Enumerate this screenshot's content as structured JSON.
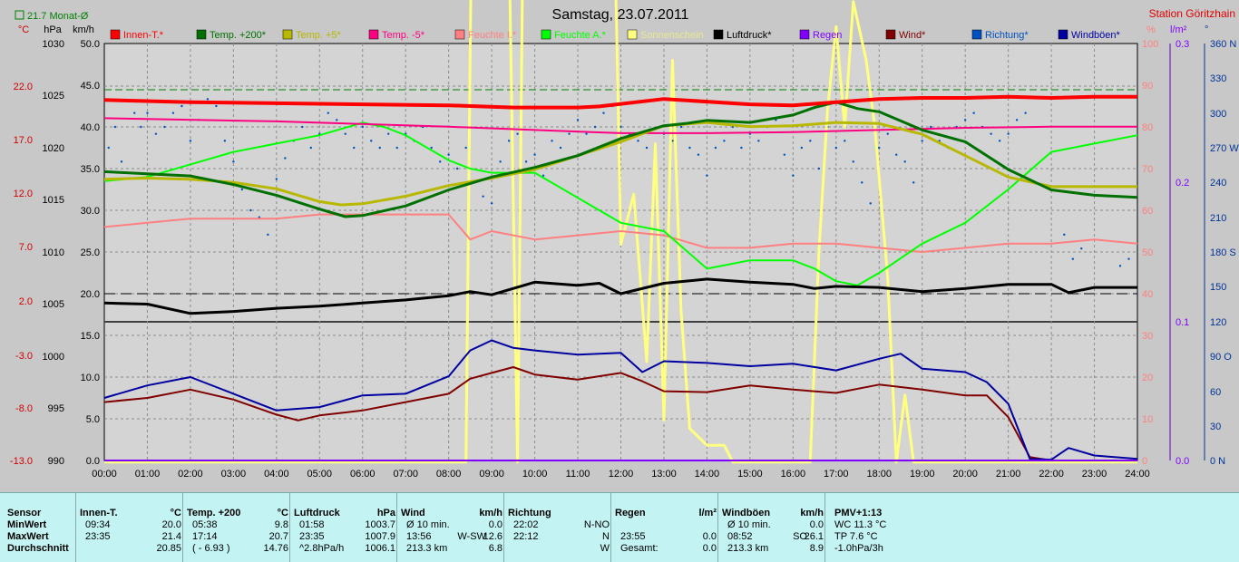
{
  "chart_data": {
    "type": "line",
    "title": "Samstag, 23.07.2011",
    "station": "Station Göritzhain",
    "monthly_avg_label": "21.7 Monat-Ø",
    "unit_labels": {
      "temp": "°C",
      "pressure": "hPa",
      "wind_speed": "km/h",
      "humidity": "%",
      "rain": "l/m²",
      "direction": "°"
    },
    "x_ticks": [
      "00:00",
      "01:00",
      "02:00",
      "03:00",
      "04:00",
      "05:00",
      "06:00",
      "07:00",
      "08:00",
      "09:00",
      "10:00",
      "11:00",
      "12:00",
      "13:00",
      "14:00",
      "15:00",
      "16:00",
      "17:00",
      "18:00",
      "19:00",
      "20:00",
      "21:00",
      "22:00",
      "23:00",
      "24:00"
    ],
    "axes": {
      "temp_ticks": [
        "22.0",
        "17.0",
        "12.0",
        "7.0",
        "2.0",
        "-3.0",
        "-8.0",
        "-13.0"
      ],
      "pressure_ticks": [
        "1030",
        "1025",
        "1020",
        "1015",
        "1010",
        "1005",
        "1000",
        "995",
        "990"
      ],
      "speed_ticks_upper": [
        "50.0",
        "45.0",
        "40.0",
        "35.0",
        "30.0",
        "25.0",
        "20.0"
      ],
      "speed_ticks_lower": [
        "15.0",
        "10.0",
        "5.0",
        "0.0"
      ],
      "humidity_ticks_upper": [
        "100",
        "90",
        "80",
        "70",
        "60",
        "50",
        "40"
      ],
      "humidity_ticks_lower": [
        "30",
        "20",
        "10",
        "0"
      ],
      "rain_ticks": [
        "0.3",
        "0.2",
        "0.1",
        "0.0"
      ],
      "direction_ticks": [
        "360 N",
        "330",
        "300",
        "270 W",
        "240",
        "210",
        "180 S",
        "150",
        "120",
        "90 O",
        "60",
        "30",
        "0 N"
      ]
    },
    "legend": [
      {
        "label": "Innen-T.*",
        "color": "#ff0000"
      },
      {
        "label": "Temp. +200*",
        "color": "#007000"
      },
      {
        "label": "Temp. +5*",
        "color": "#b8b800"
      },
      {
        "label": "Temp. -5*",
        "color": "#ff0080"
      },
      {
        "label": "Feuchte I.*",
        "color": "#ff8080"
      },
      {
        "label": "Feuchte A.*",
        "color": "#00ff00"
      },
      {
        "label": "Sonnenschein",
        "color": "#ffff80"
      },
      {
        "label": "Luftdruck*",
        "color": "#000000"
      },
      {
        "label": "Regen",
        "color": "#8000ff"
      },
      {
        "label": "Wind*",
        "color": "#800000"
      },
      {
        "label": "Richtung*",
        "color": "#0050c0"
      },
      {
        "label": "Windböen*",
        "color": "#0000a0"
      }
    ],
    "series": [
      {
        "name": "Innen-T.*",
        "color": "#ff0000",
        "width": 4,
        "axis": "temp",
        "x": [
          0,
          2,
          4,
          6,
          8,
          9.5,
          11,
          11.5,
          13,
          15,
          16,
          17,
          18,
          19,
          20,
          21,
          22,
          23,
          24
        ],
        "y": [
          20.7,
          20.5,
          20.4,
          20.3,
          20.2,
          20.0,
          20.0,
          20.1,
          20.8,
          20.3,
          20.2,
          20.5,
          20.8,
          20.9,
          20.9,
          21.0,
          20.9,
          21.0,
          21.0
        ]
      },
      {
        "name": "Temp. +200*",
        "color": "#007000",
        "width": 3,
        "axis": "temp",
        "x": [
          0,
          1,
          2,
          3,
          4,
          5,
          5.6,
          6,
          7,
          8,
          9,
          10,
          11,
          12,
          13,
          13.5,
          14,
          15,
          16,
          16.5,
          17,
          17.5,
          18,
          19,
          20,
          21,
          22,
          23,
          24
        ],
        "y": [
          14.0,
          13.8,
          13.6,
          12.8,
          11.8,
          10.5,
          9.8,
          9.9,
          10.8,
          12.3,
          13.5,
          14.4,
          15.5,
          17.1,
          18.3,
          18.5,
          18.8,
          18.6,
          19.3,
          20.0,
          20.5,
          19.9,
          19.6,
          17.9,
          16.8,
          14.2,
          12.3,
          11.8,
          11.6
        ]
      },
      {
        "name": "Temp. +5*",
        "color": "#b8b800",
        "width": 3,
        "axis": "temp",
        "x": [
          0,
          1,
          2,
          3,
          4,
          5,
          5.5,
          6,
          7,
          8,
          9,
          10,
          11,
          12,
          13,
          14,
          15,
          16,
          17,
          18,
          19,
          20,
          21,
          22,
          23,
          24
        ],
        "y": [
          13.3,
          13.4,
          13.3,
          13.0,
          12.4,
          11.2,
          10.9,
          11.0,
          11.7,
          12.7,
          13.4,
          14.2,
          15.5,
          16.8,
          18.3,
          18.6,
          18.2,
          18.3,
          18.6,
          18.5,
          17.5,
          15.5,
          13.5,
          12.6,
          12.6,
          12.6
        ]
      },
      {
        "name": "Temp. -5*",
        "color": "#ff0080",
        "width": 2,
        "axis": "temp",
        "x": [
          0,
          4,
          8,
          10,
          12,
          14,
          16,
          18,
          20,
          22,
          24
        ],
        "y": [
          19.0,
          18.7,
          18.2,
          17.9,
          17.6,
          17.6,
          17.7,
          17.9,
          18.1,
          18.2,
          18.2
        ]
      },
      {
        "name": "Feuchte I.*",
        "color": "#ff8080",
        "width": 2,
        "axis": "humidity",
        "x": [
          0,
          1,
          2,
          3,
          4,
          5,
          6,
          7,
          8,
          8.5,
          9,
          10,
          11,
          12,
          13,
          14,
          15,
          16,
          17,
          18,
          19,
          20,
          21,
          22,
          23,
          24
        ],
        "y": [
          56,
          57,
          58,
          58,
          58,
          59,
          59,
          59,
          59,
          53,
          55,
          53,
          54,
          55,
          54,
          51,
          51,
          52,
          52,
          51,
          50,
          51,
          52,
          52,
          53,
          52
        ]
      },
      {
        "name": "Feuchte A.*",
        "color": "#00ff00",
        "width": 2,
        "axis": "humidity",
        "x": [
          0,
          1,
          2,
          3,
          4,
          5,
          6,
          6.5,
          7,
          8,
          8.5,
          9,
          10,
          11,
          12,
          13,
          14,
          15,
          16,
          16.5,
          17,
          17.5,
          18,
          19,
          20,
          21,
          22,
          23,
          24
        ],
        "y": [
          67,
          68,
          71,
          74,
          76,
          78,
          81,
          80,
          78,
          72,
          70,
          69,
          69,
          63,
          57,
          55,
          46,
          48,
          48,
          46,
          43,
          42,
          45,
          52,
          57,
          65,
          74,
          76,
          78
        ]
      },
      {
        "name": "Luftdruck*",
        "color": "#000000",
        "width": 3,
        "axis": "pressure",
        "x": [
          0,
          1,
          2,
          3,
          4,
          5,
          6,
          7,
          8,
          8.5,
          9,
          10,
          11,
          11.5,
          12,
          13,
          14,
          15,
          16,
          16.5,
          17,
          18,
          19,
          20,
          21,
          22,
          22.4,
          23,
          24
        ],
        "y": [
          1005.1,
          1005.0,
          1004.1,
          1004.3,
          1004.6,
          1004.8,
          1005.1,
          1005.4,
          1005.8,
          1006.2,
          1005.9,
          1007.1,
          1006.8,
          1007.0,
          1006.0,
          1007.0,
          1007.4,
          1007.1,
          1006.9,
          1006.5,
          1006.7,
          1006.6,
          1006.2,
          1006.5,
          1006.9,
          1006.9,
          1006.1,
          1006.6,
          1006.6
        ]
      },
      {
        "name": "Wind*",
        "color": "#800000",
        "width": 2,
        "axis": "speed_lower",
        "x": [
          0,
          1,
          2,
          3,
          4,
          4.5,
          5,
          6,
          7,
          8,
          8.5,
          9,
          9.5,
          10,
          11,
          12,
          12.5,
          13,
          14,
          15,
          16,
          17,
          18,
          19,
          20,
          20.5,
          21,
          21.5,
          22,
          23,
          24
        ],
        "y": [
          7,
          7.5,
          8.5,
          7.3,
          5.5,
          4.8,
          5.4,
          6.0,
          7.0,
          8.0,
          9.8,
          10.5,
          11.2,
          10.3,
          9.7,
          10.5,
          9.5,
          8.3,
          8.2,
          9.0,
          8.5,
          8.1,
          9.1,
          8.5,
          7.8,
          7.8,
          5.2,
          0.4,
          0,
          0,
          0
        ]
      },
      {
        "name": "Windböen*",
        "color": "#0000a0",
        "width": 2,
        "axis": "speed_lower",
        "x": [
          0,
          1,
          2,
          3,
          4,
          5,
          6,
          7,
          8,
          8.5,
          9,
          9.5,
          10,
          11,
          12,
          12.5,
          13,
          14,
          15,
          16,
          17,
          18,
          18.5,
          19,
          20,
          20.5,
          21,
          21.5,
          22,
          22.4,
          23,
          24
        ],
        "y": [
          7.5,
          9,
          10,
          8.0,
          6.0,
          6.4,
          7.8,
          8.0,
          10.1,
          13.2,
          14.4,
          13.5,
          13.2,
          12.7,
          12.9,
          10.6,
          11.9,
          11.7,
          11.3,
          11.6,
          10.8,
          12.2,
          12.8,
          11.0,
          10.6,
          9.4,
          6.8,
          0.2,
          0.1,
          1.5,
          0.6,
          0.2
        ]
      },
      {
        "name": "Sonnenschein",
        "color": "#ffff80",
        "width": 3,
        "axis": "speed_upper",
        "x": [
          0,
          8.4,
          8.6,
          8.8,
          9.0,
          9.15,
          9.3,
          9.6,
          9.8,
          10.0,
          10.2,
          11.0,
          11.1,
          11.3,
          11.5,
          11.7,
          11.9,
          12.0,
          12.3,
          12.6,
          12.8,
          13.0,
          13.2,
          13.4,
          13.6,
          14.0,
          14.4,
          14.6,
          16.4,
          16.6,
          16.8,
          17.0,
          17.2,
          17.4,
          17.7,
          17.9,
          18.2,
          18.4,
          18.6,
          18.8,
          24
        ],
        "y": [
          0,
          0,
          98,
          100,
          100,
          100,
          94,
          0,
          100,
          100,
          100,
          100,
          92,
          98,
          78,
          95,
          52,
          26,
          32,
          12,
          38,
          5,
          48,
          18,
          4,
          2,
          2,
          0,
          0,
          25,
          42,
          52,
          40,
          55,
          48,
          40,
          22,
          0,
          8,
          0,
          0
        ]
      },
      {
        "name": "Regen",
        "color": "#8000ff",
        "width": 2,
        "axis": "rain",
        "x": [
          0,
          24
        ],
        "y": [
          0,
          0
        ]
      }
    ],
    "direction_points": [
      [
        0.1,
        270
      ],
      [
        0.25,
        288
      ],
      [
        0.4,
        258
      ],
      [
        0.7,
        300
      ],
      [
        0.85,
        288
      ],
      [
        1.0,
        300
      ],
      [
        1.2,
        282
      ],
      [
        1.4,
        288
      ],
      [
        1.6,
        300
      ],
      [
        1.8,
        306
      ],
      [
        2.0,
        276
      ],
      [
        2.2,
        294
      ],
      [
        2.4,
        312
      ],
      [
        2.6,
        306
      ],
      [
        2.8,
        276
      ],
      [
        3.0,
        258
      ],
      [
        3.2,
        234
      ],
      [
        3.4,
        216
      ],
      [
        3.6,
        210
      ],
      [
        3.8,
        195
      ],
      [
        4.0,
        243
      ],
      [
        4.2,
        261
      ],
      [
        4.4,
        276
      ],
      [
        4.6,
        288
      ],
      [
        4.8,
        270
      ],
      [
        5.0,
        282
      ],
      [
        5.2,
        300
      ],
      [
        5.4,
        294
      ],
      [
        5.6,
        282
      ],
      [
        5.8,
        270
      ],
      [
        6.0,
        288
      ],
      [
        6.2,
        276
      ],
      [
        6.4,
        270
      ],
      [
        6.6,
        282
      ],
      [
        6.8,
        270
      ],
      [
        7.0,
        282
      ],
      [
        7.2,
        276
      ],
      [
        7.4,
        288
      ],
      [
        7.6,
        270
      ],
      [
        7.8,
        258
      ],
      [
        8.0,
        264
      ],
      [
        8.2,
        252
      ],
      [
        8.4,
        270
      ],
      [
        8.6,
        240
      ],
      [
        8.8,
        228
      ],
      [
        9.0,
        222
      ],
      [
        9.2,
        258
      ],
      [
        9.4,
        276
      ],
      [
        9.6,
        282
      ],
      [
        9.8,
        258
      ],
      [
        10.0,
        264
      ],
      [
        10.2,
        246
      ],
      [
        10.4,
        276
      ],
      [
        10.6,
        270
      ],
      [
        10.8,
        282
      ],
      [
        11.0,
        294
      ],
      [
        11.2,
        282
      ],
      [
        11.4,
        288
      ],
      [
        11.6,
        300
      ],
      [
        11.8,
        306
      ],
      [
        12.0,
        288
      ],
      [
        12.2,
        282
      ],
      [
        12.4,
        276
      ],
      [
        12.6,
        270
      ],
      [
        12.8,
        264
      ],
      [
        13.0,
        282
      ],
      [
        13.2,
        276
      ],
      [
        13.4,
        288
      ],
      [
        13.6,
        270
      ],
      [
        13.8,
        264
      ],
      [
        14.0,
        246
      ],
      [
        14.2,
        270
      ],
      [
        14.4,
        276
      ],
      [
        14.6,
        288
      ],
      [
        14.8,
        270
      ],
      [
        15.0,
        282
      ],
      [
        15.2,
        276
      ],
      [
        15.4,
        288
      ],
      [
        15.6,
        294
      ],
      [
        15.8,
        264
      ],
      [
        16.0,
        246
      ],
      [
        16.2,
        270
      ],
      [
        16.4,
        276
      ],
      [
        16.6,
        252
      ],
      [
        16.8,
        288
      ],
      [
        17.0,
        270
      ],
      [
        17.2,
        276
      ],
      [
        17.4,
        258
      ],
      [
        17.6,
        240
      ],
      [
        17.8,
        222
      ],
      [
        18.0,
        270
      ],
      [
        18.2,
        282
      ],
      [
        18.4,
        264
      ],
      [
        18.6,
        258
      ],
      [
        18.8,
        240
      ],
      [
        19.0,
        276
      ],
      [
        19.2,
        288
      ],
      [
        19.4,
        276
      ],
      [
        19.6,
        270
      ],
      [
        19.8,
        288
      ],
      [
        20.0,
        294
      ],
      [
        20.2,
        300
      ],
      [
        20.4,
        288
      ],
      [
        20.6,
        282
      ],
      [
        20.8,
        276
      ],
      [
        21.0,
        282
      ],
      [
        21.2,
        294
      ],
      [
        21.4,
        300
      ],
      [
        22.3,
        195
      ],
      [
        22.5,
        174
      ],
      [
        22.7,
        183
      ],
      [
        23.6,
        168
      ],
      [
        23.8,
        174
      ]
    ]
  },
  "table": {
    "sensor": {
      "header": "Sensor",
      "rows": [
        "MinWert",
        "MaxWert",
        "Durchschnitt"
      ]
    },
    "innen": {
      "header": "Innen-T.",
      "unit": "°C",
      "times": [
        "09:34",
        "23:35",
        ""
      ],
      "values": [
        "20.0",
        "21.4",
        "20.85"
      ]
    },
    "temp200": {
      "header": "Temp. +200",
      "unit": "°C",
      "times": [
        "05:38",
        "17:14",
        "( - 6.93 )"
      ],
      "values": [
        "9.8",
        "20.7",
        "14.76"
      ]
    },
    "luftdruck": {
      "header": "Luftdruck",
      "unit": "hPa",
      "times": [
        "01:58",
        "23:35",
        "^2.8hPa/h"
      ],
      "values": [
        "1003.7",
        "1007.9",
        "1006.1"
      ]
    },
    "wind": {
      "header": "Wind",
      "unit": "km/h",
      "times": [
        "Ø 10 min.",
        "13:56",
        "213.3 km"
      ],
      "dirs": [
        "",
        "W-SW",
        ""
      ],
      "values": [
        "0.0",
        "12.6",
        "6.8"
      ]
    },
    "richtung": {
      "header": "Richtung",
      "times": [
        "22:02",
        "22:12",
        ""
      ],
      "values": [
        "N-NO",
        "N",
        "W"
      ]
    },
    "regen": {
      "header": "Regen",
      "unit": "l/m²",
      "times": [
        "",
        "23:55",
        "Gesamt:"
      ],
      "values": [
        "",
        "0.0",
        "0.0"
      ]
    },
    "boeen": {
      "header": "Windböen",
      "unit": "km/h",
      "times": [
        "Ø 10 min.",
        "08:52",
        "213.3 km"
      ],
      "dirs": [
        "",
        "SO",
        ""
      ],
      "values": [
        "0.0",
        "26.1",
        "8.9"
      ]
    },
    "pmv": {
      "header": "PMV+1:13",
      "lines": [
        "WC 11.3 °C",
        "TP 7.6 °C",
        "-1.0hPa/3h"
      ]
    }
  }
}
